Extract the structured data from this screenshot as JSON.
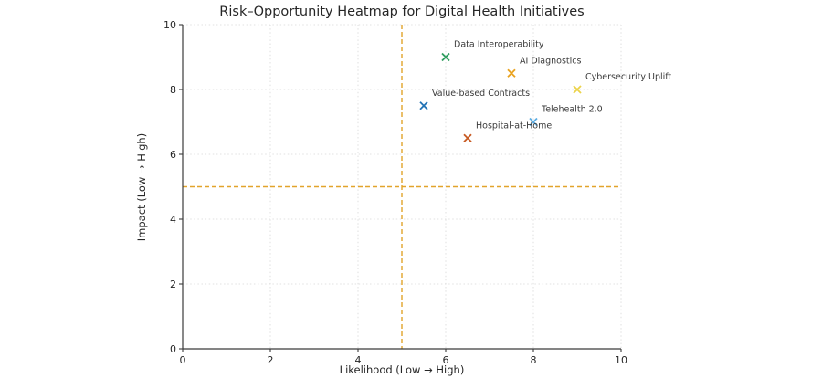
{
  "chart_data": {
    "type": "scatter",
    "title": "Risk–Opportunity Heatmap for Digital Health Initiatives",
    "xlabel": "Likelihood (Low → High)",
    "ylabel": "Impact (Low → High)",
    "xlim": [
      0,
      10
    ],
    "ylim": [
      0,
      10
    ],
    "xticks": [
      0,
      2,
      4,
      6,
      8,
      10
    ],
    "yticks": [
      0,
      2,
      4,
      6,
      8,
      10
    ],
    "grid": true,
    "grid_style": "dotted",
    "marker": "x",
    "legend": "none",
    "points": [
      {
        "label": "Data Interoperability",
        "x": 6,
        "y": 9,
        "color": "#2f9e5f"
      },
      {
        "label": "AI Diagnostics",
        "x": 7.5,
        "y": 8.5,
        "color": "#e9a21e"
      },
      {
        "label": "Cybersecurity Uplift",
        "x": 9,
        "y": 8,
        "color": "#ecd34a"
      },
      {
        "label": "Value-based Contracts",
        "x": 5.5,
        "y": 7.5,
        "color": "#2273b5"
      },
      {
        "label": "Telehealth 2.0",
        "x": 8,
        "y": 7,
        "color": "#5cace2"
      },
      {
        "label": "Hospital-at-Home",
        "x": 6.5,
        "y": 6.5,
        "color": "#c75a22"
      }
    ],
    "reference_lines": [
      {
        "axis": "x",
        "value": 5,
        "style": "dashed",
        "color": "#e2a42b"
      },
      {
        "axis": "y",
        "value": 5,
        "style": "dashed",
        "color": "#e2a42b"
      }
    ],
    "colors": {
      "background": "#ffffff",
      "spine": "#3b3b3b",
      "grid": "#d7d7d7",
      "tick_label": "#262626",
      "annotation": "#3a3a3a"
    }
  }
}
